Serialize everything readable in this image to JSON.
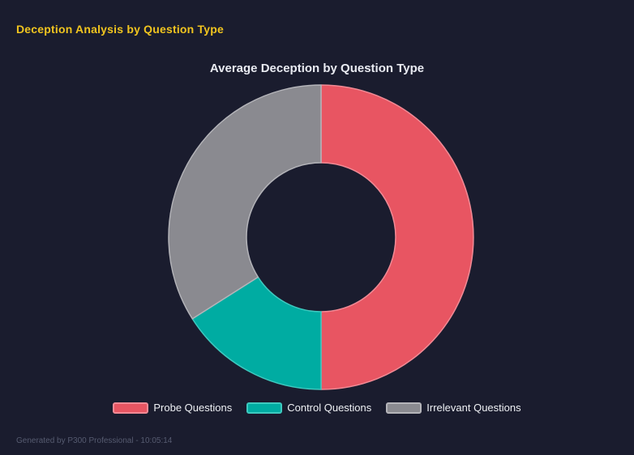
{
  "window": {
    "background": "#1a1c2e"
  },
  "header": {
    "title": "Deception Analysis by Question Type",
    "color": "#f0c41f"
  },
  "chart_data": {
    "type": "pie",
    "style": "donut",
    "title": "Average Deception by Question Type",
    "title_color": "#e9ebf2",
    "categories": [
      "Probe Questions",
      "Control Questions",
      "Irrelevant Questions"
    ],
    "values": [
      50,
      16,
      34
    ],
    "values_unit": "percent share of circle (estimated from segment angles; no numeric labels shown)",
    "colors": [
      "#e85562",
      "#00aca2",
      "#8a8a90"
    ],
    "border_colors": [
      "#f18a95",
      "#3ec9bf",
      "#b4b4b9"
    ],
    "cutout_ratio": 0.49,
    "start_angle": "top",
    "direction": "clockwise",
    "legend_position": "bottom",
    "legend_text_color": "#eef0f4"
  },
  "footer": {
    "text": "Generated by P300 Professional - 10:05:14",
    "color": "#565b70"
  }
}
